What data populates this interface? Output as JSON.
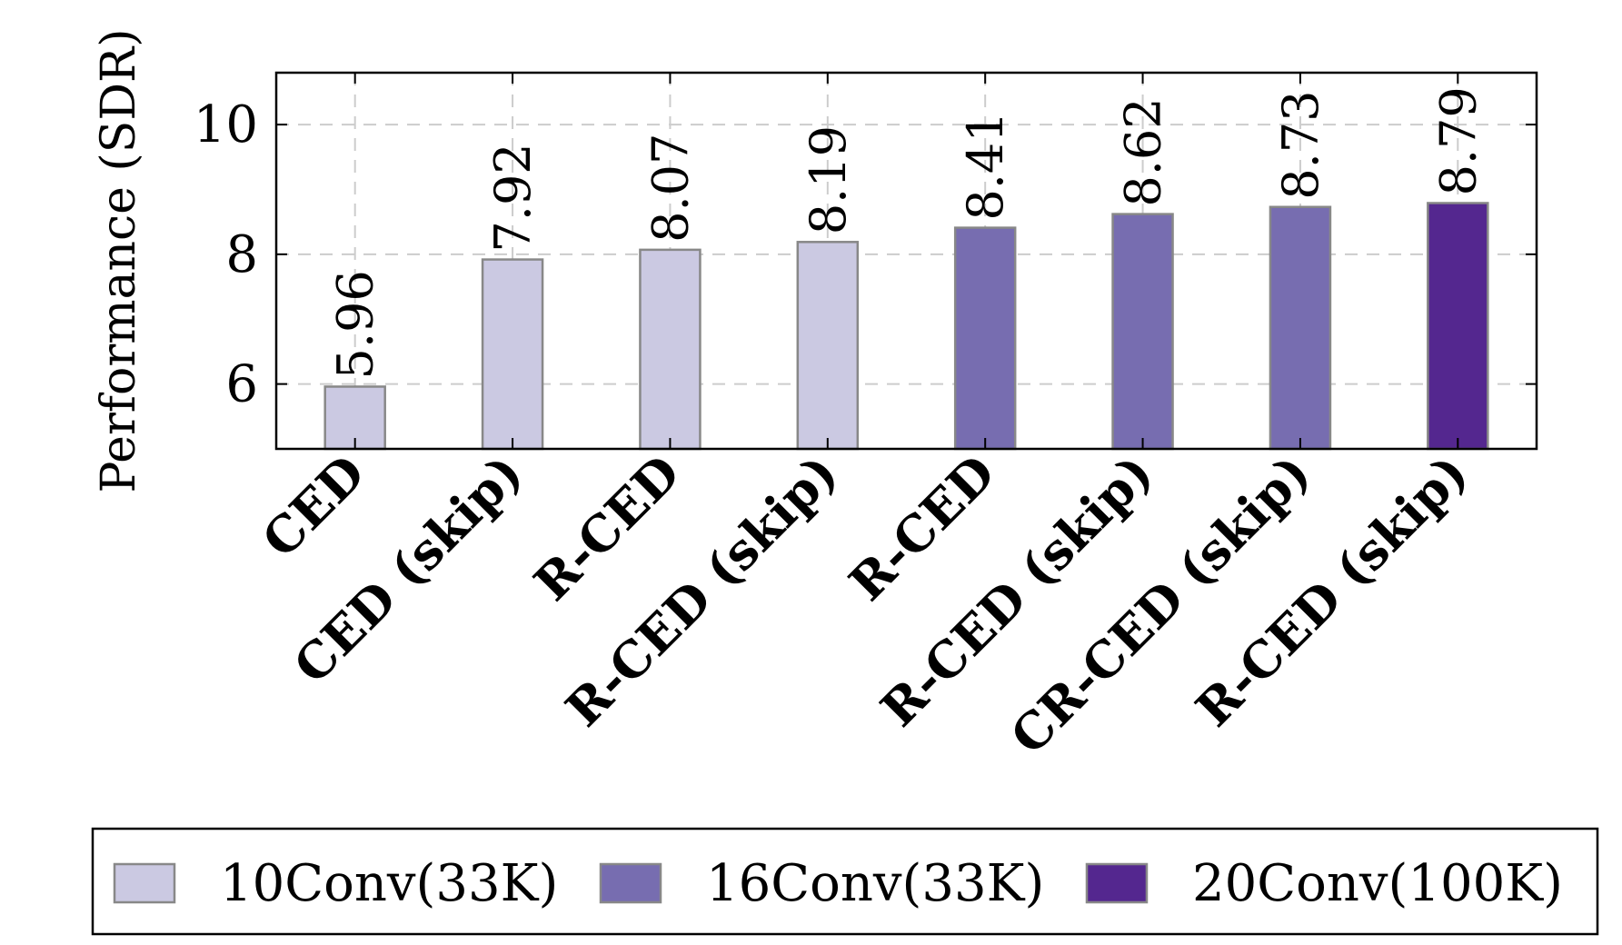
{
  "chart_data": {
    "type": "bar",
    "ylabel": "Performance (SDR)",
    "xlabel": "",
    "ylim": [
      5,
      10.8
    ],
    "yticks": [
      6,
      8,
      10
    ],
    "grid": true,
    "categories": [
      "CED",
      "CED (skip)",
      "R-CED",
      "R-CED (skip)",
      "R-CED",
      "R-CED (skip)",
      "CR-CED (skip)",
      "R-CED (skip)"
    ],
    "values": [
      5.96,
      7.92,
      8.07,
      8.19,
      8.41,
      8.62,
      8.73,
      8.79
    ],
    "data_labels": [
      "5.96",
      "7.92",
      "8.07",
      "8.19",
      "8.41",
      "8.62",
      "8.73",
      "8.79"
    ],
    "bar_group": [
      0,
      0,
      0,
      0,
      1,
      1,
      1,
      2
    ],
    "legend_placement": "bottom",
    "legend": [
      {
        "label": "10Conv(33K)",
        "color": "#cbc9e2"
      },
      {
        "label": "16Conv(33K)",
        "color": "#776db0"
      },
      {
        "label": "20Conv(100K)",
        "color": "#54278f"
      }
    ]
  }
}
